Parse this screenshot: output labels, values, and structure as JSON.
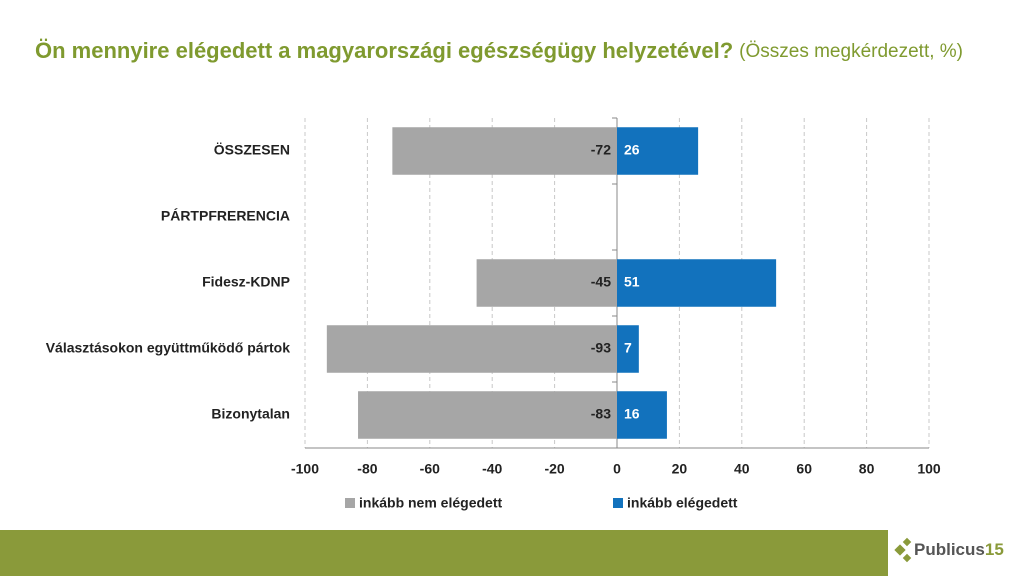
{
  "chart_data": {
    "type": "bar",
    "orientation": "horizontal",
    "title": "Ön mennyire elégedett a magyarországi egészségügy helyzetével?",
    "subtitle": "(Összes megkérdezett, %)",
    "categories": [
      "ÖSSZESEN",
      "PÁRTPFRERENCIA",
      "Fidesz-KDNP",
      "Választásokon együttműködő pártok",
      "Bizonytalan"
    ],
    "series": [
      {
        "name": "inkább nem elégedett",
        "color": "#a6a6a6",
        "values": [
          -72,
          null,
          -45,
          -93,
          -83
        ]
      },
      {
        "name": "inkább elégedett",
        "color": "#1272bd",
        "values": [
          26,
          null,
          51,
          7,
          16
        ]
      }
    ],
    "xlim": [
      -100,
      100
    ],
    "xticks": [
      -100,
      -80,
      -60,
      -40,
      -20,
      0,
      20,
      40,
      60,
      80,
      100
    ],
    "grid": true,
    "legend": "bottom"
  },
  "footer": {
    "logo_name": "Publicus",
    "logo_number": "15"
  }
}
